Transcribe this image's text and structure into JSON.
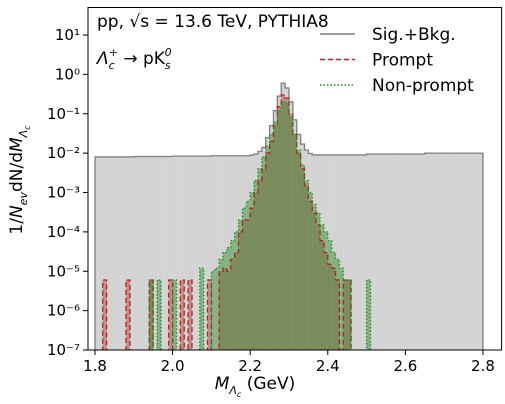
{
  "chart_data": {
    "type": "histogram",
    "annotation_1": [
      "pp, ",
      "√s",
      " = 13.6 TeV, PYTHIA8"
    ],
    "annotation_2": [
      "Λ",
      "c",
      "+",
      " → pK",
      "s",
      "0"
    ],
    "xlabel": [
      "M",
      "Λ",
      "c",
      " (GeV)"
    ],
    "ylabel": [
      "1/",
      "N",
      "ev",
      "dN/d",
      "M",
      "Λ",
      "c"
    ],
    "bins": [
      1.8,
      1.81,
      1.82,
      1.83,
      1.84,
      1.85,
      1.86,
      1.87,
      1.88,
      1.89,
      1.9,
      1.91,
      1.92,
      1.93,
      1.94,
      1.95,
      1.96,
      1.97,
      1.98,
      1.99,
      2.0,
      2.01,
      2.02,
      2.03,
      2.04,
      2.05,
      2.06,
      2.07,
      2.08,
      2.09,
      2.1,
      2.11,
      2.12,
      2.13,
      2.14,
      2.15,
      2.16,
      2.17,
      2.18,
      2.19,
      2.2,
      2.21,
      2.22,
      2.23,
      2.24,
      2.25,
      2.26,
      2.27,
      2.28,
      2.29,
      2.3,
      2.31,
      2.32,
      2.33,
      2.34,
      2.35,
      2.36,
      2.37,
      2.38,
      2.39,
      2.4,
      2.41,
      2.42,
      2.43,
      2.44,
      2.45,
      2.46,
      2.47,
      2.48,
      2.49,
      2.5,
      2.51,
      2.52,
      2.53,
      2.54,
      2.55,
      2.56,
      2.57,
      2.58,
      2.59,
      2.6,
      2.61,
      2.62,
      2.63,
      2.64,
      2.65,
      2.66,
      2.67,
      2.68,
      2.69,
      2.7,
      2.71,
      2.72,
      2.73,
      2.74,
      2.75,
      2.76,
      2.77,
      2.78,
      2.79,
      2.8
    ],
    "series": [
      {
        "name": "Sig.+Bkg.",
        "color": "#7f7f7f",
        "fill_color": "#d3d3d3",
        "linestyle": "solid",
        "values": [
          0.008,
          0.008,
          0.008,
          0.008,
          0.008,
          0.008,
          0.008,
          0.008,
          0.008,
          0.008,
          0.0082,
          0.0082,
          0.0082,
          0.0082,
          0.0082,
          0.0082,
          0.0082,
          0.0082,
          0.0082,
          0.0082,
          0.0084,
          0.0084,
          0.0084,
          0.0084,
          0.0084,
          0.0084,
          0.0084,
          0.0084,
          0.0084,
          0.0084,
          0.0086,
          0.0086,
          0.0086,
          0.0086,
          0.0086,
          0.0086,
          0.0086,
          0.0086,
          0.0086,
          0.0086,
          0.0089,
          0.0095,
          0.011,
          0.014,
          0.025,
          0.05,
          0.12,
          0.28,
          0.6,
          0.45,
          0.2,
          0.07,
          0.03,
          0.017,
          0.012,
          0.0098,
          0.009,
          0.009,
          0.009,
          0.009,
          0.009,
          0.009,
          0.009,
          0.009,
          0.009,
          0.009,
          0.009,
          0.009,
          0.009,
          0.009,
          0.0095,
          0.0095,
          0.0095,
          0.0095,
          0.0095,
          0.0095,
          0.0095,
          0.0095,
          0.0095,
          0.0095,
          0.0095,
          0.0095,
          0.0095,
          0.0095,
          0.0095,
          0.01,
          0.01,
          0.01,
          0.01,
          0.01,
          0.01,
          0.01,
          0.01,
          0.01,
          0.01,
          0.01,
          0.01,
          0.01,
          0.01,
          0.01
        ]
      },
      {
        "name": "Prompt",
        "color": "#b22222",
        "fill_color": "#b22222",
        "linestyle": "dashed",
        "values": [
          0,
          0,
          6e-06,
          0,
          0,
          0,
          0,
          0,
          6e-06,
          0,
          0,
          0,
          0,
          0,
          6e-06,
          0,
          0,
          0,
          0,
          6e-06,
          0,
          0,
          6e-06,
          0,
          6e-06,
          0,
          0,
          0,
          0,
          6e-06,
          0,
          0,
          1e-05,
          1.2e-05,
          1e-05,
          2e-05,
          3e-05,
          0.0001,
          0.0002,
          0.0002,
          0.0004,
          0.001,
          0.002,
          0.004,
          0.01,
          0.02,
          0.05,
          0.15,
          0.3,
          0.25,
          0.1,
          0.03,
          0.01,
          0.004,
          0.0015,
          0.0006,
          0.0003,
          0.00015,
          6e-05,
          3e-05,
          1.5e-05,
          1.2e-05,
          6e-06,
          0,
          6e-06,
          6e-06,
          0,
          0,
          0,
          0,
          0,
          0,
          0,
          0,
          0,
          0,
          0,
          0,
          0,
          0,
          0,
          0,
          0,
          0,
          0,
          0,
          0,
          0,
          0,
          0,
          0,
          0,
          0,
          0,
          0,
          0,
          0,
          0,
          0,
          0
        ]
      },
      {
        "name": "Non-prompt",
        "color": "#228b22",
        "fill_color": "#228b22",
        "linestyle": "dotted",
        "values": [
          0,
          0,
          0,
          0,
          0,
          0,
          0,
          0,
          0,
          0,
          0,
          0,
          0,
          0,
          6e-06,
          0,
          6e-06,
          0,
          0,
          0,
          6e-06,
          0,
          0,
          0,
          0,
          0,
          0,
          1.2e-05,
          0,
          0,
          1e-05,
          1.2e-05,
          2e-05,
          3e-05,
          4e-05,
          6e-05,
          0.0001,
          0.0002,
          0.0004,
          0.0006,
          0.001,
          0.002,
          0.004,
          0.008,
          0.015,
          0.03,
          0.06,
          0.12,
          0.2,
          0.18,
          0.08,
          0.03,
          0.012,
          0.005,
          0.002,
          0.001,
          0.0005,
          0.0003,
          0.00015,
          0.0001,
          6e-05,
          3e-05,
          2e-05,
          1.2e-05,
          6e-06,
          6e-06,
          0,
          0,
          0,
          0,
          6e-06,
          0,
          0,
          0,
          0,
          0,
          0,
          0,
          0,
          0,
          0,
          0,
          0,
          0,
          0,
          0,
          0,
          0,
          0,
          0,
          0,
          0,
          0,
          0,
          0,
          0,
          0,
          0,
          0,
          0
        ]
      }
    ],
    "xlim": [
      1.782,
      2.848
    ],
    "ylim": [
      1e-07,
      50
    ],
    "log_y": true,
    "xticks": [
      1.8,
      {
        "value": 2,
        "label": "2.0"
      },
      2.2,
      2.4,
      2.6,
      2.8
    ],
    "yticks": [
      {
        "value": 1e-07,
        "label": "10⁻⁷"
      },
      {
        "value": 1e-06,
        "label": "10⁻⁶"
      },
      {
        "value": 1e-05,
        "label": "10⁻⁵"
      },
      {
        "value": 0.0001,
        "label": "10⁻⁴"
      },
      {
        "value": 0.001,
        "label": "10⁻³"
      },
      {
        "value": 0.01,
        "label": "10⁻²"
      },
      {
        "value": 0.1,
        "label": "10⁻¹"
      },
      {
        "value": 1,
        "label": "10⁰"
      },
      {
        "value": 10,
        "label": "10¹"
      }
    ],
    "legend": "upper right",
    "grid": false
  }
}
